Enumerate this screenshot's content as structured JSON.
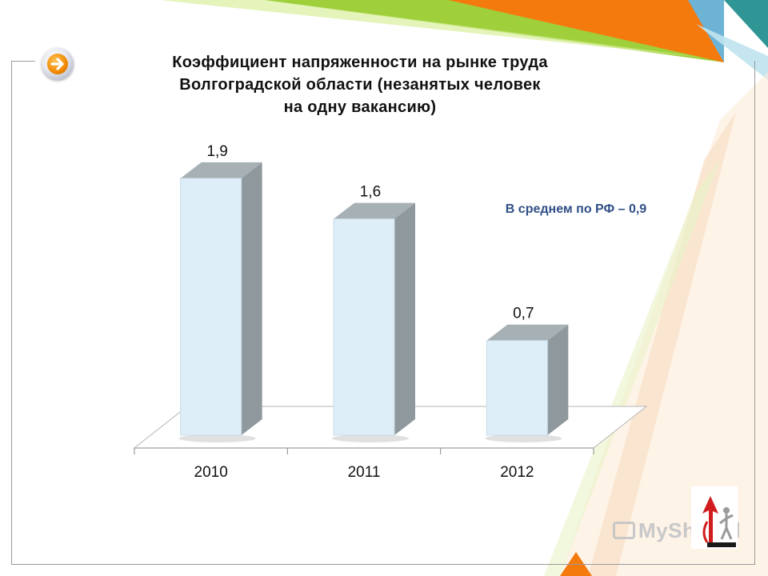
{
  "slide": {
    "title_lines": [
      "Коэффициент напряженности на рынке труда",
      "Волгоградской области (незанятых человек",
      "на одну вакансию)"
    ],
    "annotation": "В среднем по РФ – 0,9",
    "watermark": "MyShared",
    "colors": {
      "bar_front": "#deeef8",
      "bar_side": "#8f999d",
      "bar_top": "#a7b0b4",
      "annotation": "#2f4f86",
      "accent_orange": "#f47a0e",
      "accent_green": "#9acd32",
      "accent_blue": "#6db3d6"
    }
  },
  "chart_data": {
    "type": "bar",
    "categories": [
      "2010",
      "2011",
      "2012"
    ],
    "values": [
      1.9,
      1.6,
      0.7
    ],
    "value_labels": [
      "1,9",
      "1,6",
      "0,7"
    ],
    "title": "Коэффициент напряженности на рынке труда Волгоградской области (незанятых человек на одну вакансию)",
    "xlabel": "",
    "ylabel": "",
    "ylim": [
      0,
      2
    ],
    "grid": false,
    "legend": "none",
    "style": "3d-column"
  }
}
